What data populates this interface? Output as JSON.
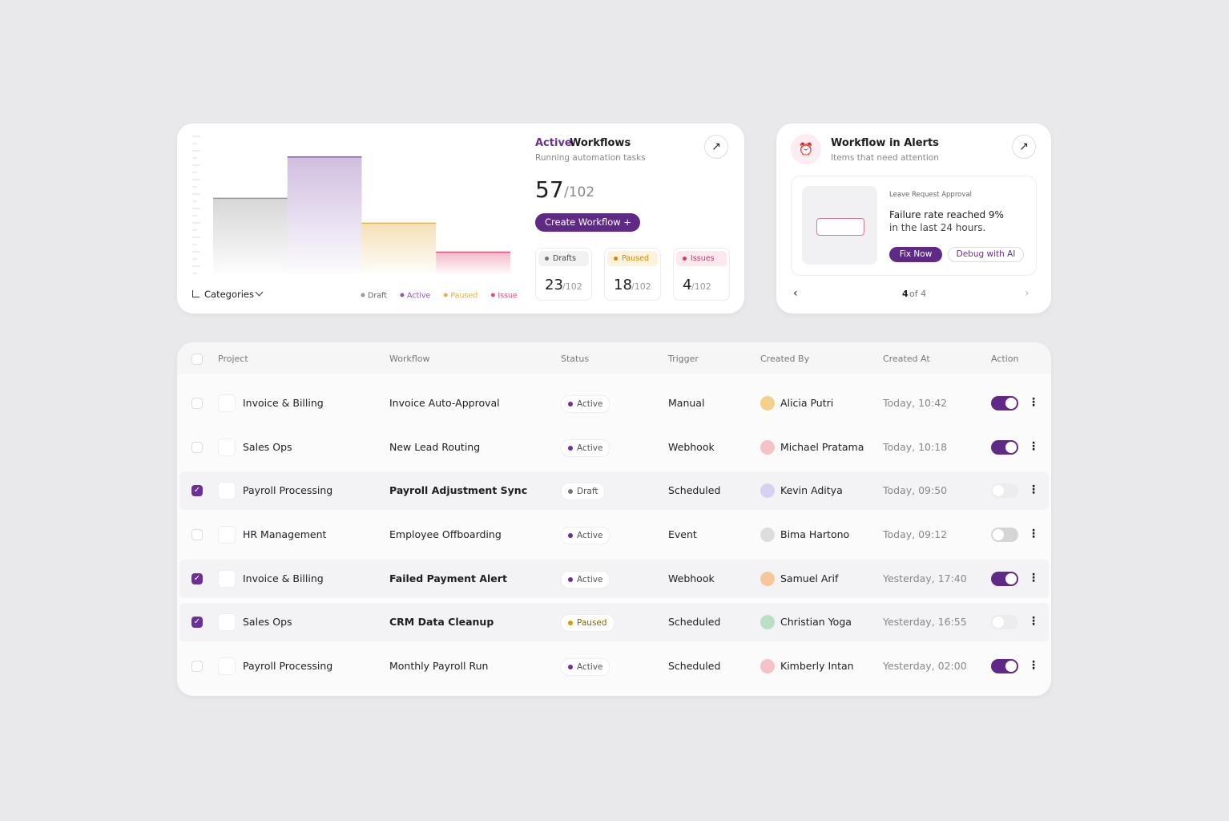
{
  "workflows_card": {
    "title_highlight": "Active",
    "title_rest": "Workflows",
    "subtitle": "Running automation tasks",
    "count": 57,
    "total": "/102",
    "button": "Create Workflow",
    "stats": [
      {
        "label": "Drafts",
        "count": 23,
        "total": "/102",
        "color": "#777777",
        "bg": "#f2f2f2"
      },
      {
        "label": "Paused",
        "count": 18,
        "total": "/102",
        "color": "#d08a00",
        "bg": "#fcf3de"
      },
      {
        "label": "Issues",
        "count": 4,
        "total": "/102",
        "color": "#d23c6a",
        "bg": "#fde8ee"
      }
    ],
    "selector": "Categories"
  },
  "chart_data": {
    "type": "bar",
    "categories": [
      "Draft",
      "Active",
      "Paused",
      "Issue"
    ],
    "values": [
      55,
      85,
      37,
      16
    ],
    "colors": [
      "#9a9a9a",
      "#8a5cb3",
      "#e2b24c",
      "#e0507a"
    ],
    "ylim": [
      0,
      100
    ]
  },
  "alerts_card": {
    "title": "Workflow in Alerts",
    "subtitle": "Items that need attention",
    "tag": "Leave Request Approval",
    "headline": "Failure rate reached 9%",
    "detail": "in the last 24 hours.",
    "primary_button": "Fix Now",
    "secondary_button": "Debug with AI",
    "pager_current": 4,
    "pager_total": "of 4"
  },
  "table": {
    "columns": [
      "Project",
      "Workflow",
      "Status",
      "Trigger",
      "Created By",
      "Created At",
      "Action"
    ],
    "rows": [
      {
        "project": "Invoice & Billing",
        "workflow": "Invoice Auto-Approval",
        "status": "Active",
        "trigger": "Manual",
        "created_by": "Alicia Putri",
        "created_at": "Today, 10:42",
        "selected": false,
        "enabled": true
      },
      {
        "project": "Sales Ops",
        "workflow": "New Lead Routing",
        "status": "Active",
        "trigger": "Webhook",
        "created_by": "Michael Pratama",
        "created_at": "Today, 10:18",
        "selected": false,
        "enabled": true
      },
      {
        "project": "Payroll Processing",
        "workflow": "Payroll Adjustment Sync",
        "status": "Draft",
        "trigger": "Scheduled",
        "created_by": "Kevin Aditya",
        "created_at": "Today, 09:50",
        "selected": true,
        "enabled": false
      },
      {
        "project": "HR Management",
        "workflow": "Employee Offboarding",
        "status": "Active",
        "trigger": "Event",
        "created_by": "Bima Hartono",
        "created_at": "Today, 09:12",
        "selected": false,
        "enabled": false
      },
      {
        "project": "Invoice & Billing",
        "workflow": "Failed Payment Alert",
        "status": "Active",
        "trigger": "Webhook",
        "created_by": "Samuel Arif",
        "created_at": "Yesterday, 17:40",
        "selected": true,
        "enabled": true
      },
      {
        "project": "Sales Ops",
        "workflow": "CRM Data Cleanup",
        "status": "Paused",
        "trigger": "Scheduled",
        "created_by": "Christian Yoga",
        "created_at": "Yesterday, 16:55",
        "selected": true,
        "enabled": false
      },
      {
        "project": "Payroll Processing",
        "workflow": "Monthly Payroll Run",
        "status": "Active",
        "trigger": "Scheduled",
        "created_by": "Kimberly Intan",
        "created_at": "Yesterday, 02:00",
        "selected": false,
        "enabled": true
      }
    ]
  }
}
